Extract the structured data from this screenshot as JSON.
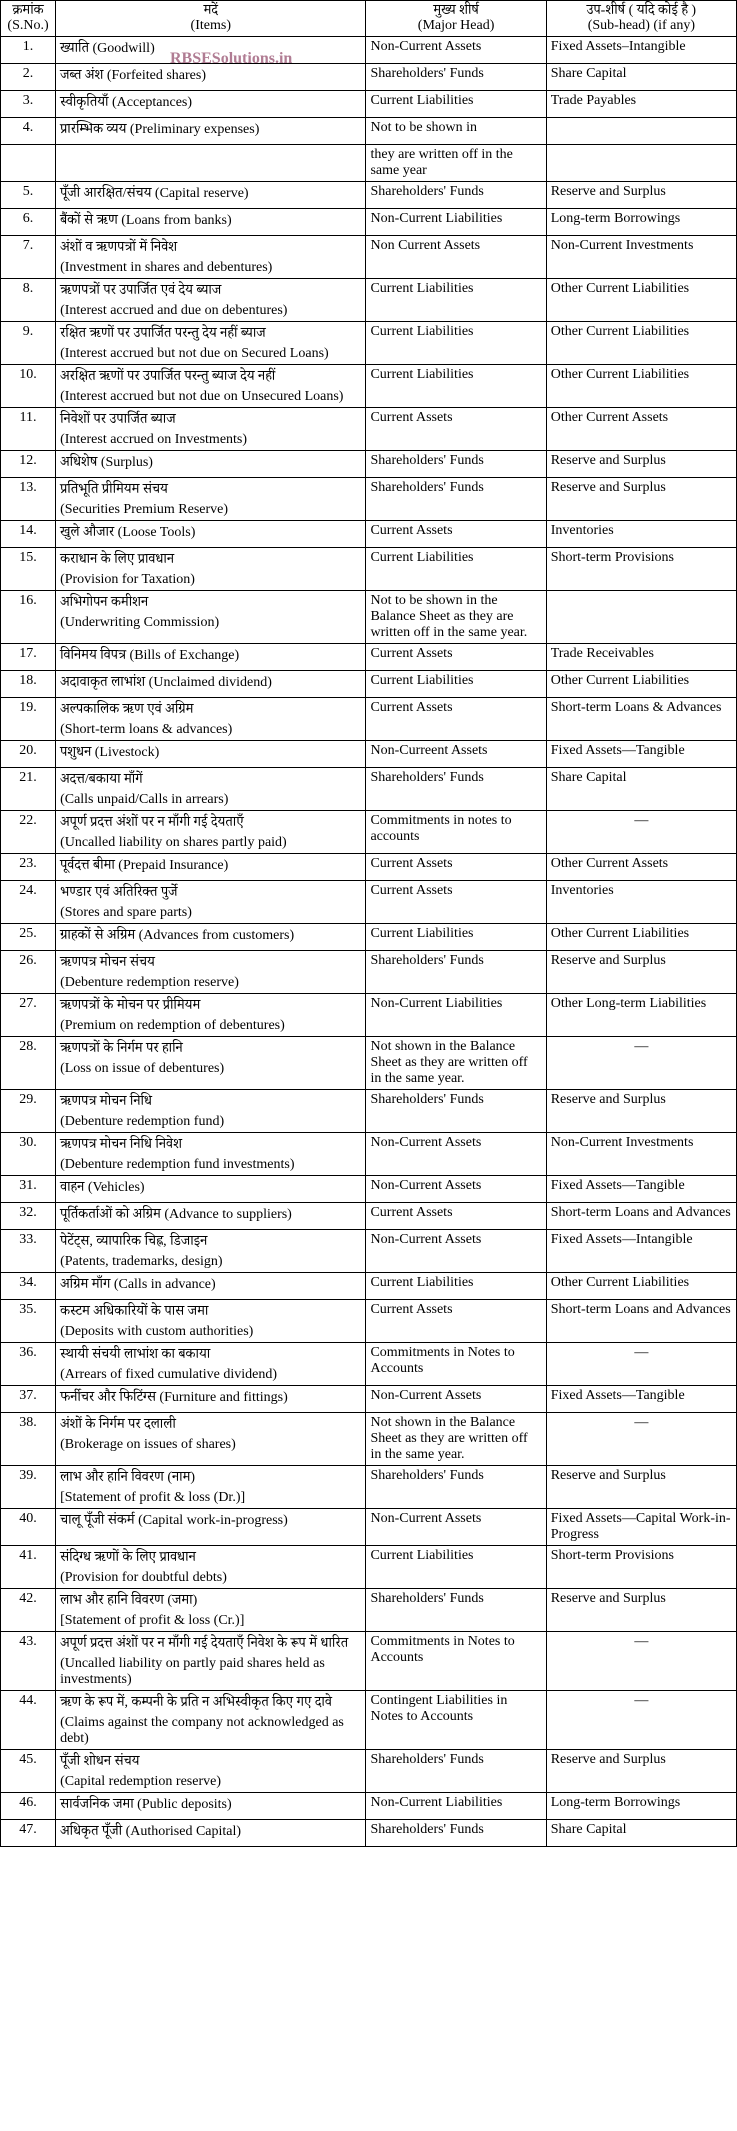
{
  "watermark": "RBSESolutions.in",
  "header": {
    "sn_hi": "क्रमांक",
    "sn_en": "(S.No.)",
    "item_hi": "मदें",
    "item_en": "(Items)",
    "major_hi": "मुख्य शीर्ष",
    "major_en": "(Major Head)",
    "sub_hi": "उप-शीर्ष ( यदि कोई है )",
    "sub_en": "(Sub-head) (if any)"
  },
  "rows": [
    {
      "sn": "1.",
      "item": "ख्याति (Goodwill)",
      "major": "Non-Current Assets",
      "sub": "Fixed Assets–Intangible"
    },
    {
      "sn": "2.",
      "item": "जब्त अंश (Forfeited shares)",
      "major": "Shareholders' Funds",
      "sub": "Share Capital"
    },
    {
      "sn": "3.",
      "item": "स्वीकृतियाँ (Acceptances)",
      "major": "Current Liabilities",
      "sub": "Trade Payables"
    },
    {
      "sn": "4.",
      "item": "प्रारम्भिक व्यय (Preliminary expenses)",
      "major": "Not to be shown in",
      "sub": ""
    },
    {
      "sn": "",
      "item": "",
      "major": "they are written off in the same year",
      "sub": ""
    },
    {
      "sn": "5.",
      "item": "पूँजी आरक्षित/संचय (Capital reserve)",
      "major": "Shareholders' Funds",
      "sub": "Reserve and Surplus"
    },
    {
      "sn": "6.",
      "item": "बैंकों से ऋण (Loans from banks)",
      "major": "Non-Current Liabilities",
      "sub": "Long-term Borrowings"
    },
    {
      "sn": "7.",
      "item": "अंशों व ऋणपत्रों में निवेश\n(Investment in shares and debentures)",
      "major": "Non Current Assets",
      "sub": "Non-Current Investments"
    },
    {
      "sn": "8.",
      "item": "ऋणपत्रों पर उपार्जित एवं देय ब्याज\n(Interest accrued and due on debentures)",
      "major": "Current Liabilities",
      "sub": "Other Current Liabilities"
    },
    {
      "sn": "9.",
      "item": "रक्षित ऋणों पर उपार्जित परन्तु देय नहीं ब्याज\n(Interest accrued but not due on Secured Loans)",
      "major": "Current Liabilities",
      "sub": "Other Current Liabilities"
    },
    {
      "sn": "10.",
      "item": "अरक्षित ऋणों पर उपार्जित परन्तु ब्याज देय नहीं\n(Interest accrued but not due on Unsecured Loans)",
      "major": "Current Liabilities",
      "sub": "Other Current Liabilities"
    },
    {
      "sn": "11.",
      "item": "निवेशों पर उपार्जित ब्याज\n(Interest accrued on Investments)",
      "major": "Current Assets",
      "sub": "Other Current Assets"
    },
    {
      "sn": "12.",
      "item": "अधिशेष (Surplus)",
      "major": "Shareholders' Funds",
      "sub": "Reserve and Surplus"
    },
    {
      "sn": "13.",
      "item": "प्रतिभूति प्रीमियम संचय\n(Securities Premium Reserve)",
      "major": "Shareholders' Funds",
      "sub": "Reserve and Surplus"
    },
    {
      "sn": "14.",
      "item": "खुले औजार (Loose Tools)",
      "major": "Current Assets",
      "sub": "Inventories"
    },
    {
      "sn": "15.",
      "item": "कराधान के लिए प्रावधान\n(Provision for Taxation)",
      "major": "Current Liabilities",
      "sub": "Short-term Provisions"
    },
    {
      "sn": "16.",
      "item": "अभिगोपन कमीशन\n(Underwriting Commission)",
      "major": "Not to be shown in the Balance Sheet as they are written off in the same year.",
      "sub": ""
    },
    {
      "sn": "17.",
      "item": "विनिमय विपत्र (Bills of Exchange)",
      "major": "Current Assets",
      "sub": "Trade Receivables"
    },
    {
      "sn": "18.",
      "item": "अदावाकृत लाभांश (Unclaimed dividend)",
      "major": "Current Liabilities",
      "sub": "Other Current Liabilities"
    },
    {
      "sn": "19.",
      "item": "अल्पकालिक ऋण एवं अग्रिम\n(Short-term loans & advances)",
      "major": "Current Assets",
      "sub": "Short-term Loans & Advances"
    },
    {
      "sn": "20.",
      "item": "पशुधन (Livestock)",
      "major": "Non-Curreent Assets",
      "sub": "Fixed Assets—Tangible"
    },
    {
      "sn": "21.",
      "item": "अदत्त/बकाया माँगें\n(Calls unpaid/Calls in arrears)",
      "major": "Shareholders' Funds",
      "sub": "Share Capital"
    },
    {
      "sn": "22.",
      "item": "अपूर्ण प्रदत्त अंशों पर न माँगी गई देयताएँ\n(Uncalled liability on shares partly paid)",
      "major": "Commitments in notes to accounts",
      "sub": "—",
      "subcenter": true
    },
    {
      "sn": "23.",
      "item": "पूर्वदत्त बीमा (Prepaid Insurance)",
      "major": "Current Assets",
      "sub": "Other Current Assets"
    },
    {
      "sn": "24.",
      "item": "भण्डार एवं अतिरिक्त पुर्जे\n(Stores and spare parts)",
      "major": "Current Assets",
      "sub": "Inventories"
    },
    {
      "sn": "25.",
      "item": "ग्राहकों से अग्रिम (Advances from customers)",
      "major": "Current Liabilities",
      "sub": "Other Current Liabilities"
    },
    {
      "sn": "26.",
      "item": "ऋणपत्र मोचन संचय\n(Debenture redemption reserve)",
      "major": "Shareholders' Funds",
      "sub": "Reserve and Surplus"
    },
    {
      "sn": "27.",
      "item": "ऋणपत्रों के मोचन पर प्रीमियम\n(Premium on redemption of debentures)",
      "major": "Non-Current Liabilities",
      "sub": "Other Long-term Liabilities"
    },
    {
      "sn": "28.",
      "item": "ऋणपत्रों के निर्गम पर हानि\n(Loss on issue of debentures)",
      "major": "Not shown in the Balance Sheet as they are written off in the same year.",
      "sub": "—",
      "subcenter": true
    },
    {
      "sn": "29.",
      "item": "ऋणपत्र मोचन निधि\n(Debenture redemption fund)",
      "major": "Shareholders' Funds",
      "sub": "Reserve and Surplus"
    },
    {
      "sn": "30.",
      "item": "ऋणपत्र मोचन निधि निवेश\n(Debenture redemption fund investments)",
      "major": "Non-Current Assets",
      "sub": "Non-Current Investments"
    },
    {
      "sn": "31.",
      "item": "वाहन (Vehicles)",
      "major": "Non-Current Assets",
      "sub": "Fixed Assets—Tangible"
    },
    {
      "sn": "32.",
      "item": "पूर्तिकर्ताओं को अग्रिम (Advance to suppliers)",
      "major": "Current Assets",
      "sub": "Short-term Loans and Advances"
    },
    {
      "sn": "33.",
      "item": "पेटेंट्स, व्यापारिक चिह्न, डिजाइन\n(Patents, trademarks, design)",
      "major": "Non-Current Assets",
      "sub": "Fixed Assets—Intangible"
    },
    {
      "sn": "34.",
      "item": "अग्रिम माँग (Calls in advance)",
      "major": "Current Liabilities",
      "sub": "Other Current Liabilities"
    },
    {
      "sn": "35.",
      "item": "कस्टम अधिकारियों के पास जमा\n(Deposits with custom authorities)",
      "major": "Current Assets",
      "sub": "Short-term Loans and Advances"
    },
    {
      "sn": "36.",
      "item": "स्थायी संचयी लाभांश का बकाया\n(Arrears of fixed cumulative dividend)",
      "major": "Commitments in Notes to Accounts",
      "sub": "—",
      "subcenter": true
    },
    {
      "sn": "37.",
      "item": "फर्नीचर और फिटिंग्स (Furniture and fittings)",
      "major": "Non-Current Assets",
      "sub": "Fixed Assets—Tangible"
    },
    {
      "sn": "38.",
      "item": "अंशों के निर्गम पर दलाली\n(Brokerage on issues of shares)",
      "major": "Not shown in the Balance Sheet as they are written off in the same year.",
      "sub": "—",
      "subcenter": true
    },
    {
      "sn": "39.",
      "item": "लाभ और हानि विवरण (नाम)\n[Statement of profit & loss (Dr.)]",
      "major": "Shareholders' Funds",
      "sub": "Reserve and Surplus"
    },
    {
      "sn": "40.",
      "item": "चालू पूँजी संकर्म (Capital work-in-progress)",
      "major": "Non-Current Assets",
      "sub": "Fixed Assets—Capital Work-in-Progress"
    },
    {
      "sn": "41.",
      "item": "संदिग्ध ऋणों के लिए प्रावधान\n(Provision for doubtful debts)",
      "major": "Current Liabilities",
      "sub": "Short-term Provisions"
    },
    {
      "sn": "42.",
      "item": "लाभ और हानि विवरण (जमा)\n[Statement of profit & loss (Cr.)]",
      "major": "Shareholders' Funds",
      "sub": "Reserve and Surplus"
    },
    {
      "sn": "43.",
      "item": "अपूर्ण प्रदत्त अंशों पर न माँगी गई देयताएँ निवेश के रूप में धारित (Uncalled liability on partly paid shares held as investments)",
      "major": "Commitments in Notes to Accounts",
      "sub": "—",
      "subcenter": true
    },
    {
      "sn": "44.",
      "item": "ऋण के रूप में, कम्पनी के प्रति न अभिस्वीकृत किए गए दावे (Claims against the company not acknowledged as debt)",
      "major": "Contingent Liabilities in Notes to Accounts",
      "sub": "—",
      "subcenter": true
    },
    {
      "sn": "45.",
      "item": "पूँजी शोधन संचय\n(Capital redemption reserve)",
      "major": "Shareholders' Funds",
      "sub": "Reserve and Surplus"
    },
    {
      "sn": "46.",
      "item": "सार्वजनिक जमा (Public deposits)",
      "major": "Non-Current Liabilities",
      "sub": "Long-term Borrowings"
    },
    {
      "sn": "47.",
      "item": "अधिकृत पूँजी (Authorised Capital)",
      "major": "Shareholders' Funds",
      "sub": "Share Capital"
    }
  ]
}
